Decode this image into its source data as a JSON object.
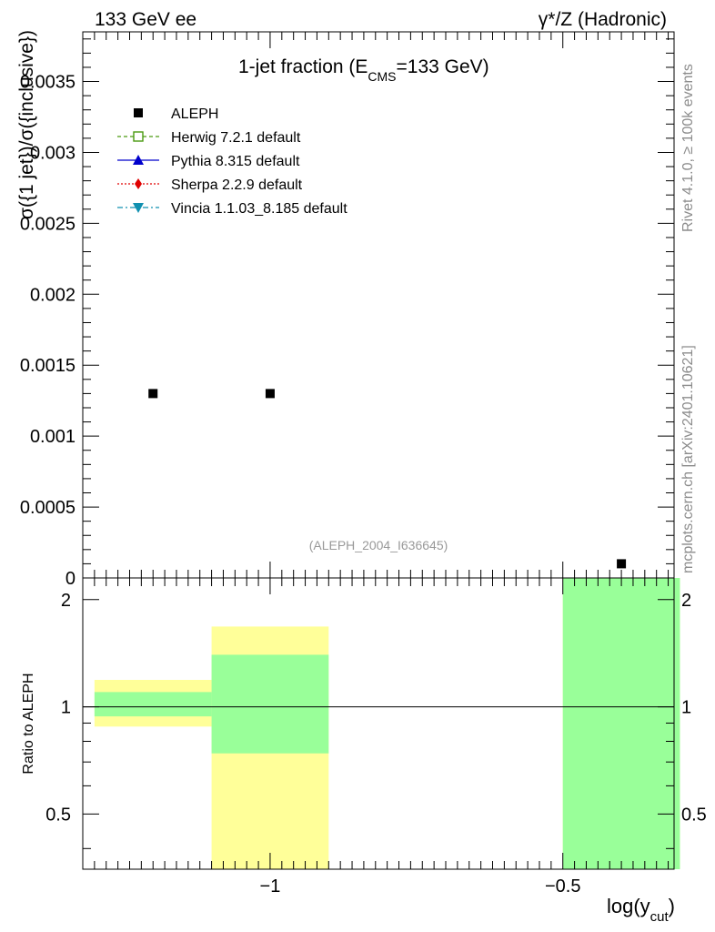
{
  "header": {
    "left": "133 GeV ee",
    "right": "γ*/Z (Hadronic)"
  },
  "side_text": {
    "rivet": "Rivet 4.1.0, ≥ 100k events",
    "mcplots": "mcplots.cern.ch [arXiv:2401.10621]"
  },
  "chart_data": [
    {
      "type": "scatter",
      "title": "1-jet fraction (E",
      "title_sub": "CMS",
      "title_end": "=133 GeV)",
      "ylabel": "σ({1 jet})/σ({inclusive})",
      "xlabel": "log(y",
      "xlabel_sub": "cut",
      "xlabel_end": ")",
      "xlim": [
        -1.32,
        -0.31
      ],
      "ylim": [
        0,
        0.00385
      ],
      "yticks": [
        0,
        0.0005,
        0.001,
        0.0015,
        0.002,
        0.0025,
        0.003,
        0.0035
      ],
      "ytick_labels": [
        "0",
        "0.0005",
        "0.001",
        "0.0015",
        "0.002",
        "0.0025",
        "0.003",
        "0.0035"
      ],
      "annotation": "(ALEPH_2004_I636645)",
      "legend": [
        {
          "name": "ALEPH",
          "color": "#000000",
          "marker": "square",
          "line": "none"
        },
        {
          "name": "Herwig 7.2.1 default",
          "color": "#4a9a10",
          "marker": "open-square",
          "line": "dashed"
        },
        {
          "name": "Pythia 8.315 default",
          "color": "#0000cc",
          "marker": "triangle-up",
          "line": "solid"
        },
        {
          "name": "Sherpa 2.2.9 default",
          "color": "#e00000",
          "marker": "diamond",
          "line": "dotted"
        },
        {
          "name": "Vincia 1.1.03_8.185 default",
          "color": "#1090b0",
          "marker": "triangle-down",
          "line": "dashdot"
        }
      ],
      "series": [
        {
          "name": "ALEPH",
          "x": [
            -1.2,
            -1.0,
            -0.4
          ],
          "y": [
            0.0013,
            0.0013,
            0.0001
          ]
        }
      ]
    },
    {
      "type": "bar",
      "ylabel": "Ratio to ALEPH",
      "xlim": [
        -1.32,
        -0.31
      ],
      "ylim": [
        0.35,
        2.3
      ],
      "yticks": [
        0.5,
        1,
        2
      ],
      "ytick_labels": [
        "0.5",
        "1",
        "2"
      ],
      "xticks": [
        -1.0,
        -0.5
      ],
      "xtick_labels": [
        "−1",
        "−0.5"
      ],
      "reference_line": 1,
      "bands": [
        {
          "x": [
            -1.3,
            -1.1
          ],
          "yellow": [
            0.88,
            1.19
          ],
          "green": [
            0.94,
            1.1
          ]
        },
        {
          "x": [
            -1.1,
            -0.9
          ],
          "yellow": [
            0.35,
            1.68
          ],
          "green": [
            0.74,
            1.4
          ]
        },
        {
          "x": [
            -0.5,
            -0.3
          ],
          "yellow": [
            0.35,
            2.3
          ],
          "green": [
            0.35,
            2.3
          ]
        }
      ],
      "band_colors": {
        "yellow": "#ffff99",
        "green": "#99ff99"
      }
    }
  ]
}
